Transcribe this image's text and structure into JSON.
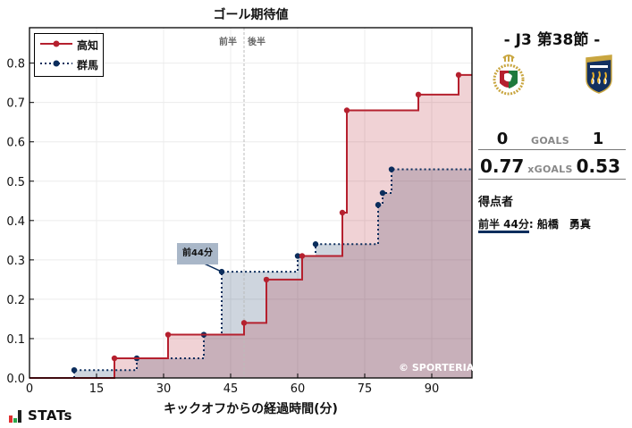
{
  "chart_data": {
    "type": "line",
    "subtype": "step-area",
    "title": "ゴール期待値",
    "xlabel": "キックオフからの経過時間(分)",
    "ylabel": "",
    "xlim": [
      0,
      99
    ],
    "ylim": [
      0,
      0.89
    ],
    "xticks": [
      0,
      15,
      30,
      45,
      60,
      75,
      90
    ],
    "yticks": [
      0.0,
      0.1,
      0.2,
      0.3,
      0.4,
      0.5,
      0.6,
      0.7,
      0.8
    ],
    "grid": true,
    "legend_position": "upper left",
    "half_divider_x": 48,
    "half_labels": [
      "前半",
      "後半"
    ],
    "series": [
      {
        "name": "高知",
        "color": "#b5202e",
        "style": "solid",
        "points": [
          [
            19,
            0.05
          ],
          [
            31,
            0.11
          ],
          [
            48,
            0.14
          ],
          [
            53,
            0.25
          ],
          [
            61,
            0.31
          ],
          [
            70,
            0.42
          ],
          [
            71,
            0.68
          ],
          [
            87,
            0.72
          ],
          [
            96,
            0.77
          ]
        ],
        "final": 0.77
      },
      {
        "name": "群馬",
        "color": "#0b2d5c",
        "style": "dotted",
        "points": [
          [
            10,
            0.02
          ],
          [
            24,
            0.05
          ],
          [
            39,
            0.11
          ],
          [
            43,
            0.27
          ],
          [
            60,
            0.31
          ],
          [
            64,
            0.34
          ],
          [
            78,
            0.44
          ],
          [
            79,
            0.47
          ],
          [
            81,
            0.53
          ]
        ],
        "final": 0.53
      }
    ],
    "annotations": [
      {
        "text": "前44分",
        "x": 43,
        "y": 0.27,
        "series": "群馬"
      }
    ]
  },
  "header": {
    "title": "ゴール期待値"
  },
  "legend": {
    "items": [
      {
        "label": "高知"
      },
      {
        "label": "群馬"
      }
    ]
  },
  "annotation": {
    "label": "前44分"
  },
  "halves": {
    "first": "前半",
    "second": "後半"
  },
  "axis": {
    "xlabel": "キックオフからの経過時間(分)",
    "xticks": [
      "0",
      "15",
      "30",
      "45",
      "60",
      "75",
      "90"
    ],
    "yticks": [
      "0.0",
      "0.1",
      "0.2",
      "0.3",
      "0.4",
      "0.5",
      "0.6",
      "0.7",
      "0.8"
    ]
  },
  "watermark": "© SPORTERIA",
  "match": {
    "round": "-  J3 第38節  -",
    "home": {
      "name": "高知",
      "goals": "0",
      "xg": "0.77",
      "color": "#b5202e"
    },
    "away": {
      "name": "群馬",
      "goals": "1",
      "xg": "0.53",
      "color": "#0b2d5c"
    },
    "goals_label": "GOALS",
    "xg_label": "xGOALS"
  },
  "scorers": {
    "heading": "得点者",
    "items": [
      {
        "time": "前半 44分",
        "name": ": 船橋　勇真"
      }
    ]
  },
  "brand": {
    "label": "STATs",
    "bar_colors": [
      "#e03030",
      "#2aa84a",
      "#222222"
    ]
  }
}
